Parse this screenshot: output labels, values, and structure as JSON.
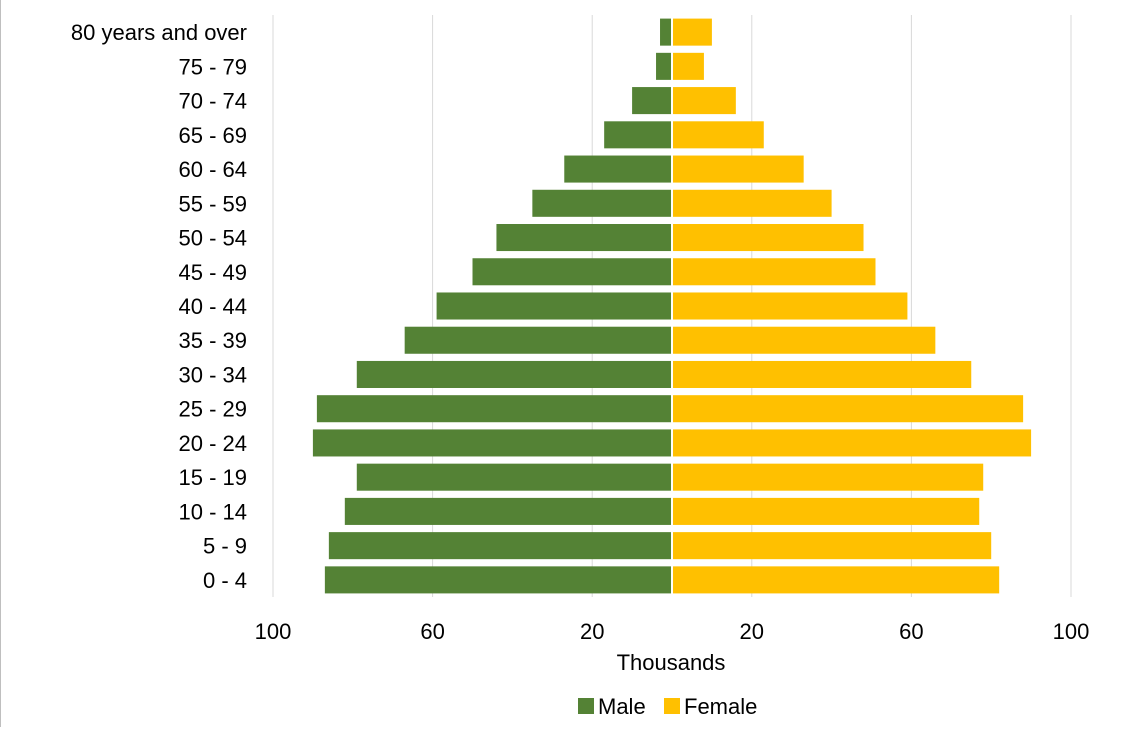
{
  "chart_data": {
    "type": "bar",
    "orientation": "horizontal",
    "variant": "population-pyramid",
    "title": "",
    "xlabel": "Thousands",
    "ylabel": "",
    "xlim": [
      -100,
      100
    ],
    "x_ticks": [
      -100,
      -60,
      -20,
      20,
      60,
      100
    ],
    "x_tick_labels": [
      "100",
      "60",
      "20",
      "20",
      "60",
      "100"
    ],
    "grid": "vertical",
    "legend_position": "bottom",
    "categories": [
      "0 - 4",
      "5 - 9",
      "10 - 14",
      "15 - 19",
      "20 - 24",
      "25 - 29",
      "30 - 34",
      "35 - 39",
      "40 - 44",
      "45 - 49",
      "50 - 54",
      "55 - 59",
      "60 - 64",
      "65 - 69",
      "70 - 74",
      "75 - 79",
      "80 years and over"
    ],
    "series": [
      {
        "name": "Male",
        "color": "#548235",
        "values": [
          -87,
          -86,
          -82,
          -79,
          -90,
          -89,
          -79,
          -67,
          -59,
          -50,
          -44,
          -35,
          -27,
          -17,
          -10,
          -4,
          -3
        ]
      },
      {
        "name": "Female",
        "color": "#ffc000",
        "values": [
          82,
          80,
          77,
          78,
          90,
          88,
          75,
          66,
          59,
          51,
          48,
          40,
          33,
          23,
          16,
          8,
          10
        ]
      }
    ]
  }
}
